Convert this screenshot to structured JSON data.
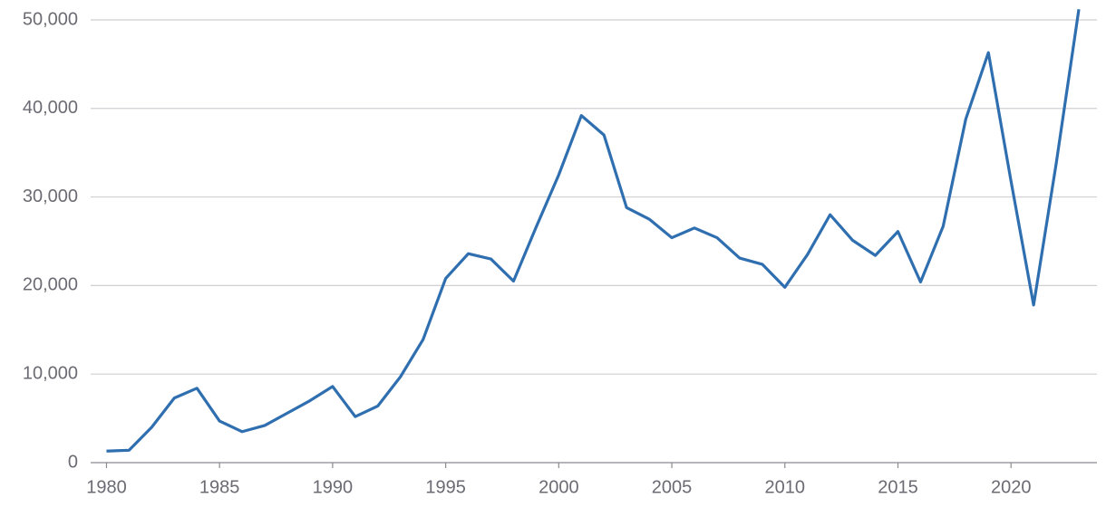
{
  "chart_data": {
    "type": "line",
    "x": [
      1980,
      1981,
      1982,
      1983,
      1984,
      1985,
      1986,
      1987,
      1988,
      1989,
      1990,
      1991,
      1992,
      1993,
      1994,
      1995,
      1996,
      1997,
      1998,
      1999,
      2000,
      2001,
      2002,
      2003,
      2004,
      2005,
      2006,
      2007,
      2008,
      2009,
      2010,
      2011,
      2012,
      2013,
      2014,
      2015,
      2016,
      2017,
      2018,
      2019,
      2020,
      2021,
      2022,
      2023
    ],
    "series": [
      {
        "color": "#2f6fb0",
        "values": [
          1300,
          1400,
          4000,
          7300,
          8400,
          4700,
          3500,
          4200,
          5600,
          7000,
          8600,
          5200,
          6400,
          9700,
          13900,
          20800,
          23600,
          23000,
          20500,
          26600,
          32500,
          39200,
          37000,
          28800,
          27500,
          25400,
          26500,
          25400,
          23100,
          22400,
          19800,
          23500,
          28000,
          25100,
          23400,
          26100,
          20400,
          26700,
          38800,
          46300,
          31800,
          17800,
          33800,
          51200
        ]
      }
    ],
    "xlim": [
      1979.3,
      2023.8
    ],
    "ylim": [
      0,
      51500
    ],
    "xticks": [
      1980,
      1985,
      1990,
      1995,
      2000,
      2005,
      2010,
      2015,
      2020
    ],
    "yticks": [
      0,
      {
        "value": 10000,
        "label": "10,000"
      },
      {
        "value": 20000,
        "label": "20,000"
      },
      {
        "value": 30000,
        "label": "30,000"
      },
      {
        "value": 40000,
        "label": "40,000"
      },
      {
        "value": 50000,
        "label": "50,000"
      }
    ],
    "grid": true
  }
}
